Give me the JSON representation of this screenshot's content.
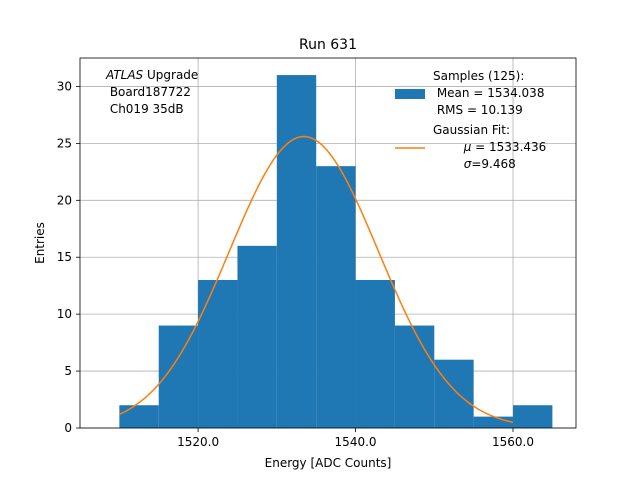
{
  "chart_data": {
    "type": "bar",
    "title": "Run 631",
    "xlabel": "Energy [ADC Counts]",
    "ylabel": "Entries",
    "xlim": [
      1505,
      1568
    ],
    "ylim": [
      0,
      32.5
    ],
    "grid": true,
    "x_ticks": [
      1520.0,
      1540.0,
      1560.0
    ],
    "x_tick_labels": [
      "1520.0",
      "1540.0",
      "1560.0"
    ],
    "y_ticks": [
      0,
      5,
      10,
      15,
      20,
      25,
      30
    ],
    "y_tick_labels": [
      "0",
      "5",
      "10",
      "15",
      "20",
      "25",
      "30"
    ],
    "bins": [
      {
        "x0": 1510,
        "x1": 1515,
        "count": 2
      },
      {
        "x0": 1515,
        "x1": 1520,
        "count": 9
      },
      {
        "x0": 1520,
        "x1": 1525,
        "count": 13
      },
      {
        "x0": 1525,
        "x1": 1530,
        "count": 16
      },
      {
        "x0": 1530,
        "x1": 1535,
        "count": 31
      },
      {
        "x0": 1535,
        "x1": 1540,
        "count": 23
      },
      {
        "x0": 1540,
        "x1": 1545,
        "count": 13
      },
      {
        "x0": 1545,
        "x1": 1550,
        "count": 9
      },
      {
        "x0": 1550,
        "x1": 1555,
        "count": 6
      },
      {
        "x0": 1555,
        "x1": 1560,
        "count": 1
      },
      {
        "x0": 1560,
        "x1": 1565,
        "count": 2
      }
    ],
    "fit": {
      "mu": 1533.436,
      "sigma": 9.468,
      "peak": 25.6,
      "x_range": [
        1510,
        1560
      ]
    },
    "colors": {
      "histogram": "#1f77b4",
      "fit": "#ff7f0e",
      "grid": "#b0b0b0"
    },
    "annotation": {
      "line1_italic": "ATLAS",
      "line1_rest": " Upgrade",
      "line2": " Board187722",
      "line3": " Ch019 35dB"
    },
    "legend": {
      "placement": "upper-right",
      "samples_line1": "Samples (125):",
      "samples_line2": " Mean = 1534.038",
      "samples_line3": " RMS = 10.139",
      "fit_line1": "Gaussian Fit:",
      "fit_line2_sym": "μ",
      "fit_line2_rest": " = 1533.436",
      "fit_line3_sym": "σ",
      "fit_line3_rest": "=9.468"
    }
  }
}
